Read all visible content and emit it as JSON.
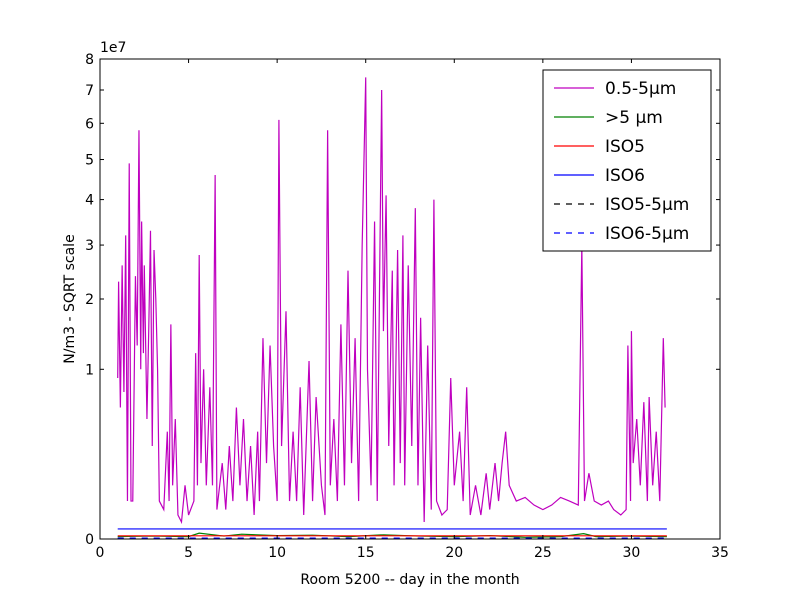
{
  "chart_data": {
    "type": "line",
    "x_label": "Room 5200 -- day in the month",
    "y_label": "N/m3 - SQRT scale",
    "y_offset_label": "1e7",
    "yscale": "sqrt",
    "xlim": [
      0,
      35
    ],
    "xticks": [
      0,
      5,
      10,
      15,
      20,
      25,
      30,
      35
    ],
    "ylim": [
      0,
      8
    ],
    "yticks": [
      0,
      1,
      2,
      3,
      4,
      5,
      6,
      7,
      8
    ],
    "legend": "upper right",
    "series": [
      {
        "name": "0.5-5µm",
        "color": "#bf00bf",
        "dash": "solid",
        "x": [
          1.0,
          1.05,
          1.15,
          1.25,
          1.35,
          1.45,
          1.55,
          1.65,
          1.75,
          1.85,
          2.0,
          2.1,
          2.2,
          2.3,
          2.35,
          2.45,
          2.5,
          2.65,
          2.75,
          2.85,
          2.95,
          3.05,
          3.15,
          3.25,
          3.35,
          3.6,
          3.8,
          3.9,
          4.0,
          4.1,
          4.25,
          4.4,
          4.6,
          4.8,
          5.0,
          5.3,
          5.4,
          5.5,
          5.6,
          5.7,
          5.85,
          6.0,
          6.2,
          6.35,
          6.5,
          6.6,
          6.9,
          7.1,
          7.3,
          7.5,
          7.7,
          7.9,
          8.1,
          8.3,
          8.5,
          8.7,
          8.9,
          9.0,
          9.2,
          9.4,
          9.6,
          9.8,
          10.0,
          10.1,
          10.25,
          10.5,
          10.7,
          10.9,
          11.1,
          11.3,
          11.5,
          11.8,
          12.0,
          12.2,
          12.5,
          12.7,
          12.85,
          13.0,
          13.2,
          13.4,
          13.6,
          13.8,
          14.0,
          14.2,
          14.4,
          14.6,
          14.8,
          15.0,
          15.1,
          15.3,
          15.5,
          15.65,
          15.9,
          16.0,
          16.15,
          16.3,
          16.5,
          16.6,
          16.8,
          16.95,
          17.1,
          17.2,
          17.4,
          17.6,
          17.8,
          17.95,
          18.1,
          18.3,
          18.5,
          18.7,
          18.85,
          19.0,
          19.3,
          19.6,
          19.8,
          20.0,
          20.3,
          20.5,
          20.7,
          20.9,
          21.2,
          21.5,
          21.8,
          22.0,
          22.3,
          22.5,
          22.7,
          22.9,
          23.1,
          23.5,
          24.0,
          24.5,
          25.0,
          25.5,
          26.0,
          26.5,
          27.0,
          27.2,
          27.35,
          27.6,
          27.9,
          28.3,
          28.7,
          29.0,
          29.4,
          29.7,
          29.8,
          29.95,
          30.0,
          30.1,
          30.3,
          30.5,
          30.7,
          30.9,
          31.0,
          31.2,
          31.4,
          31.6,
          31.8,
          31.9
        ],
        "values": [
          0.9,
          2.3,
          0.6,
          2.6,
          0.75,
          3.2,
          0.05,
          4.9,
          0.05,
          0.05,
          2.4,
          1.3,
          5.8,
          1.0,
          3.5,
          1.2,
          2.6,
          0.5,
          1.5,
          3.3,
          0.3,
          2.9,
          2.0,
          1.0,
          0.05,
          0.03,
          0.4,
          0.05,
          1.6,
          0.1,
          0.5,
          0.02,
          0.01,
          0.1,
          0.02,
          0.05,
          1.2,
          0.1,
          2.8,
          0.2,
          1.0,
          0.1,
          0.8,
          0.1,
          4.6,
          0.03,
          0.2,
          0.03,
          0.3,
          0.05,
          0.6,
          0.1,
          0.5,
          0.05,
          0.3,
          0.02,
          0.4,
          0.05,
          1.4,
          0.2,
          1.3,
          0.3,
          0.05,
          6.1,
          0.3,
          1.8,
          0.05,
          0.4,
          0.05,
          0.8,
          0.02,
          1.1,
          0.05,
          0.7,
          0.1,
          0.02,
          5.8,
          0.1,
          0.5,
          0.05,
          1.6,
          0.1,
          2.5,
          0.2,
          1.4,
          0.05,
          3.0,
          7.4,
          1.0,
          0.1,
          3.5,
          0.05,
          7.0,
          1.5,
          4.1,
          0.3,
          2.5,
          0.1,
          2.9,
          0.2,
          3.2,
          0.1,
          2.6,
          0.3,
          3.8,
          0.1,
          1.7,
          0.01,
          1.3,
          0.03,
          4.0,
          0.05,
          0.02,
          0.03,
          0.9,
          0.1,
          0.4,
          0.05,
          0.8,
          0.02,
          0.1,
          0.02,
          0.15,
          0.03,
          0.2,
          0.05,
          0.2,
          0.4,
          0.1,
          0.05,
          0.06,
          0.04,
          0.03,
          0.04,
          0.06,
          0.05,
          0.04,
          3.0,
          0.05,
          0.15,
          0.05,
          0.04,
          0.05,
          0.03,
          0.02,
          0.03,
          1.3,
          0.05,
          1.5,
          0.2,
          0.5,
          0.1,
          0.65,
          0.05,
          0.7,
          0.1,
          0.4,
          0.05,
          1.4,
          0.6
        ]
      },
      {
        "name": ">5 µm",
        "color": "#008000",
        "dash": "solid",
        "x": [
          1,
          3,
          5,
          5.6,
          7,
          8,
          10,
          12,
          14,
          16,
          18,
          20,
          22,
          24,
          26,
          27.3,
          28,
          30,
          32
        ],
        "values": [
          0.0002,
          0.0003,
          0.0002,
          0.0012,
          0.0003,
          0.0008,
          0.0004,
          0.0005,
          0.0002,
          0.0006,
          0.0003,
          0.0002,
          0.0004,
          0.0001,
          0.0002,
          0.001,
          0.0002,
          0.0003,
          0.0002
        ]
      },
      {
        "name": "ISO5",
        "color": "#ff0000",
        "dash": "solid",
        "x": [
          1,
          32
        ],
        "values": [
          0.000352,
          0.000352
        ]
      },
      {
        "name": "ISO6",
        "color": "#0000ff",
        "dash": "solid",
        "x": [
          1,
          32
        ],
        "values": [
          0.00352,
          0.00352
        ]
      },
      {
        "name": "ISO5-5µm",
        "color": "#000000",
        "dash": "dashed",
        "x": [
          1,
          32
        ],
        "values": [
          2.9e-06,
          2.9e-06
        ]
      },
      {
        "name": "ISO6-5µm",
        "color": "#0000ff",
        "dash": "dashed",
        "x": [
          1,
          32
        ],
        "values": [
          2.93e-05,
          2.93e-05
        ]
      }
    ]
  }
}
